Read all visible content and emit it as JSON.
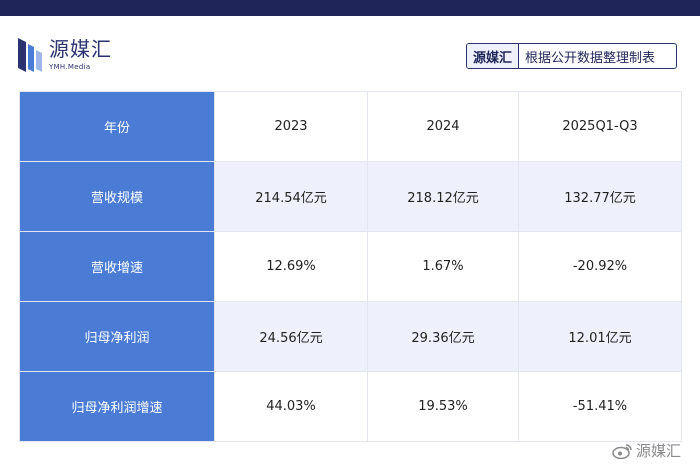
{
  "brand": {
    "name": "源媒汇",
    "sub": "YMH.Media"
  },
  "source_tag": {
    "brand": "源媒汇",
    "text": "根据公开数据整理制表"
  },
  "table": {
    "header": [
      "年份",
      "2023",
      "2024",
      "2025Q1-Q3"
    ],
    "rows": [
      {
        "label": "营收规模",
        "values": [
          "214.54亿元",
          "218.12亿元",
          "132.77亿元"
        ]
      },
      {
        "label": "营收增速",
        "values": [
          "12.69%",
          "1.67%",
          "-20.92%"
        ]
      },
      {
        "label": "归母净利润",
        "values": [
          "24.56亿元",
          "29.36亿元",
          "12.01亿元"
        ]
      },
      {
        "label": "归母净利润增速",
        "values": [
          "44.03%",
          "19.53%",
          "-51.41%"
        ]
      }
    ]
  },
  "watermark": {
    "text": "源媒汇",
    "icon": "weibo-icon"
  },
  "colors": {
    "top_bar": "#1f2559",
    "label_column": "#4a7cd6",
    "shaded_row": "#eef1fb"
  }
}
